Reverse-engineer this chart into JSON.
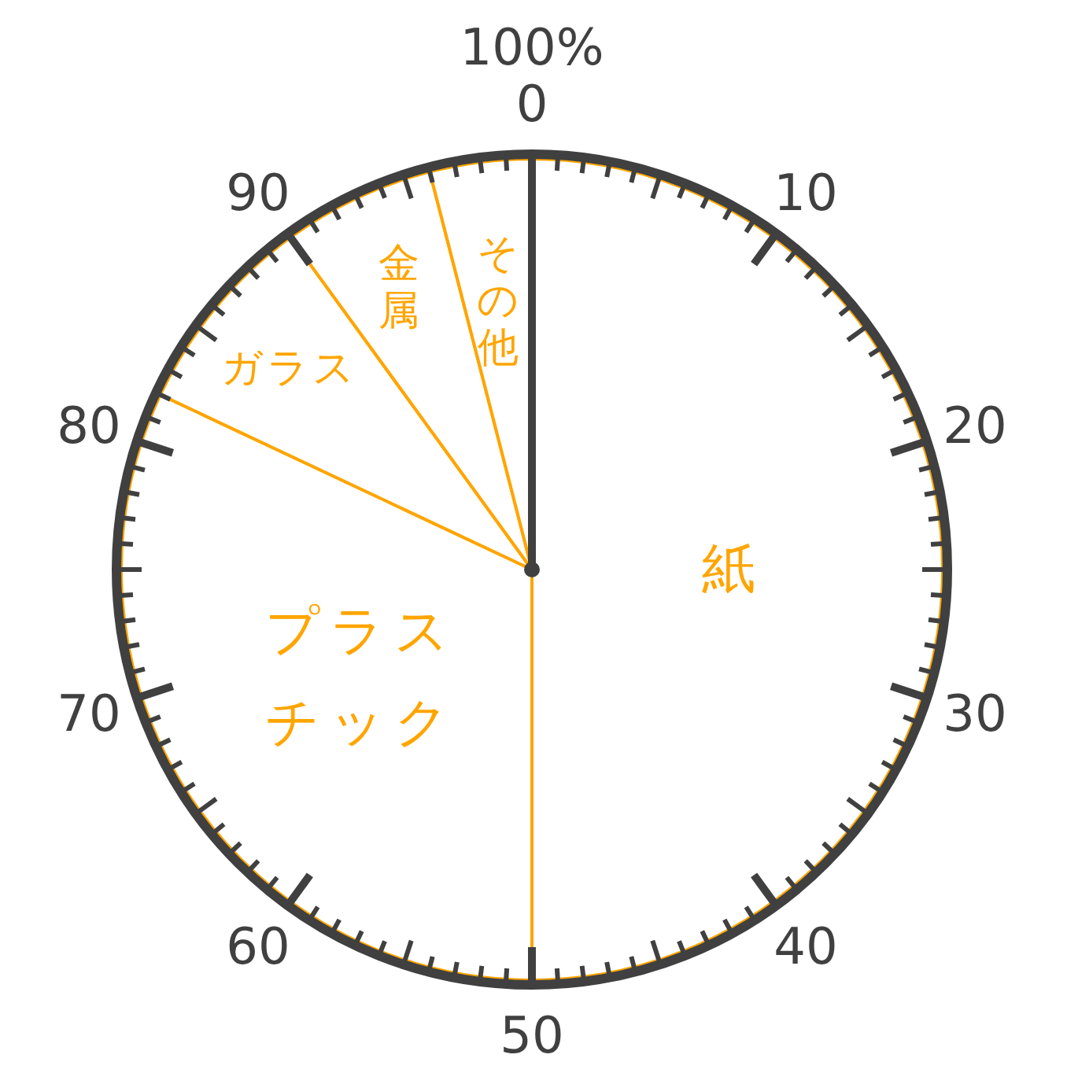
{
  "chart_data": {
    "type": "pie",
    "categories": [
      "紙",
      "プラスチック",
      "ガラス",
      "金属",
      "その他"
    ],
    "values": [
      50,
      32,
      8,
      6,
      4
    ],
    "colors": [
      "#ffa500",
      "#ffa500",
      "#ffa500",
      "#ffa500",
      "#ffa500"
    ],
    "needle": "紙",
    "annotations": [
      "0",
      "10",
      "20",
      "30",
      "40",
      "50",
      "60",
      "70",
      "80",
      "90",
      "100%"
    ]
  }
}
